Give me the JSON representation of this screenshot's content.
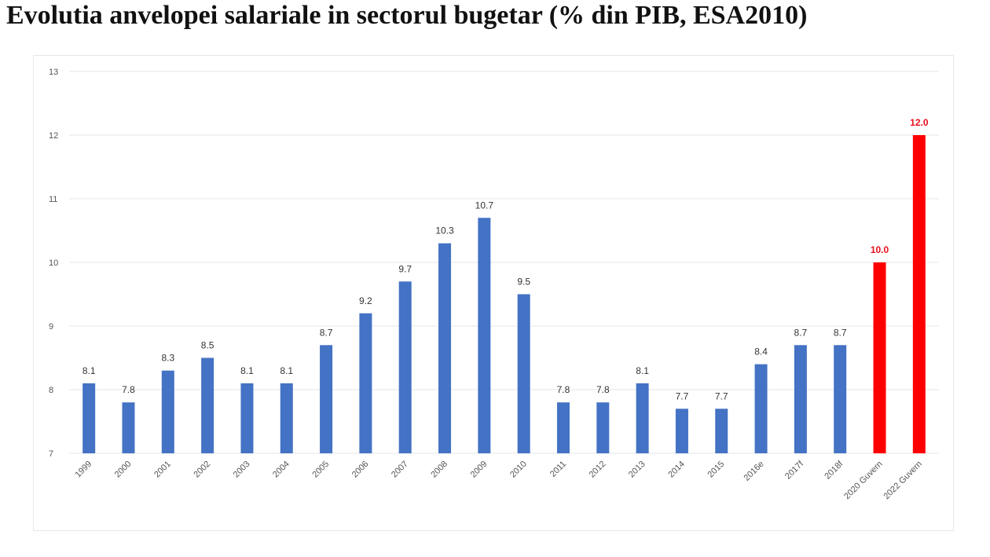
{
  "title": "Evolutia anvelopei salariale in sectorul bugetar (% din PIB, ESA2010)",
  "chart_data": {
    "type": "bar",
    "title": "Evolutia anvelopei salariale in sectorul bugetar (% din PIB, ESA2010)",
    "categories": [
      "1999",
      "2000",
      "2001",
      "2002",
      "2003",
      "2004",
      "2005",
      "2006",
      "2007",
      "2008",
      "2009",
      "2010",
      "2011",
      "2012",
      "2013",
      "2014",
      "2015",
      "2016e",
      "2017f",
      "2018f",
      "2020 Guvern",
      "2022 Guvern"
    ],
    "values": [
      8.1,
      7.8,
      8.3,
      8.5,
      8.1,
      8.1,
      8.7,
      9.2,
      9.7,
      10.3,
      10.7,
      9.5,
      7.8,
      7.8,
      8.1,
      7.7,
      7.7,
      8.4,
      8.7,
      8.7,
      10.0,
      12.0
    ],
    "labels": [
      "8.1",
      "7.8",
      "8.3",
      "8.5",
      "8.1",
      "8.1",
      "8.7",
      "9.2",
      "9.7",
      "10.3",
      "10.7",
      "9.5",
      "7.8",
      "7.8",
      "8.1",
      "7.7",
      "7.7",
      "8.4",
      "8.7",
      "8.7",
      "10.0",
      "12.0"
    ],
    "highlight": [
      false,
      false,
      false,
      false,
      false,
      false,
      false,
      false,
      false,
      false,
      false,
      false,
      false,
      false,
      false,
      false,
      false,
      false,
      false,
      false,
      true,
      true
    ],
    "ylim": [
      7,
      13
    ],
    "yticks": [
      7,
      8,
      9,
      10,
      11,
      12,
      13
    ],
    "grid": true,
    "legend": "none",
    "xlabel": "",
    "ylabel": "",
    "colors": {
      "bar": "#4472c4",
      "highlight": "#ff0000",
      "grid": "#e4e4e4",
      "label_highlight": "#e8101c"
    }
  }
}
